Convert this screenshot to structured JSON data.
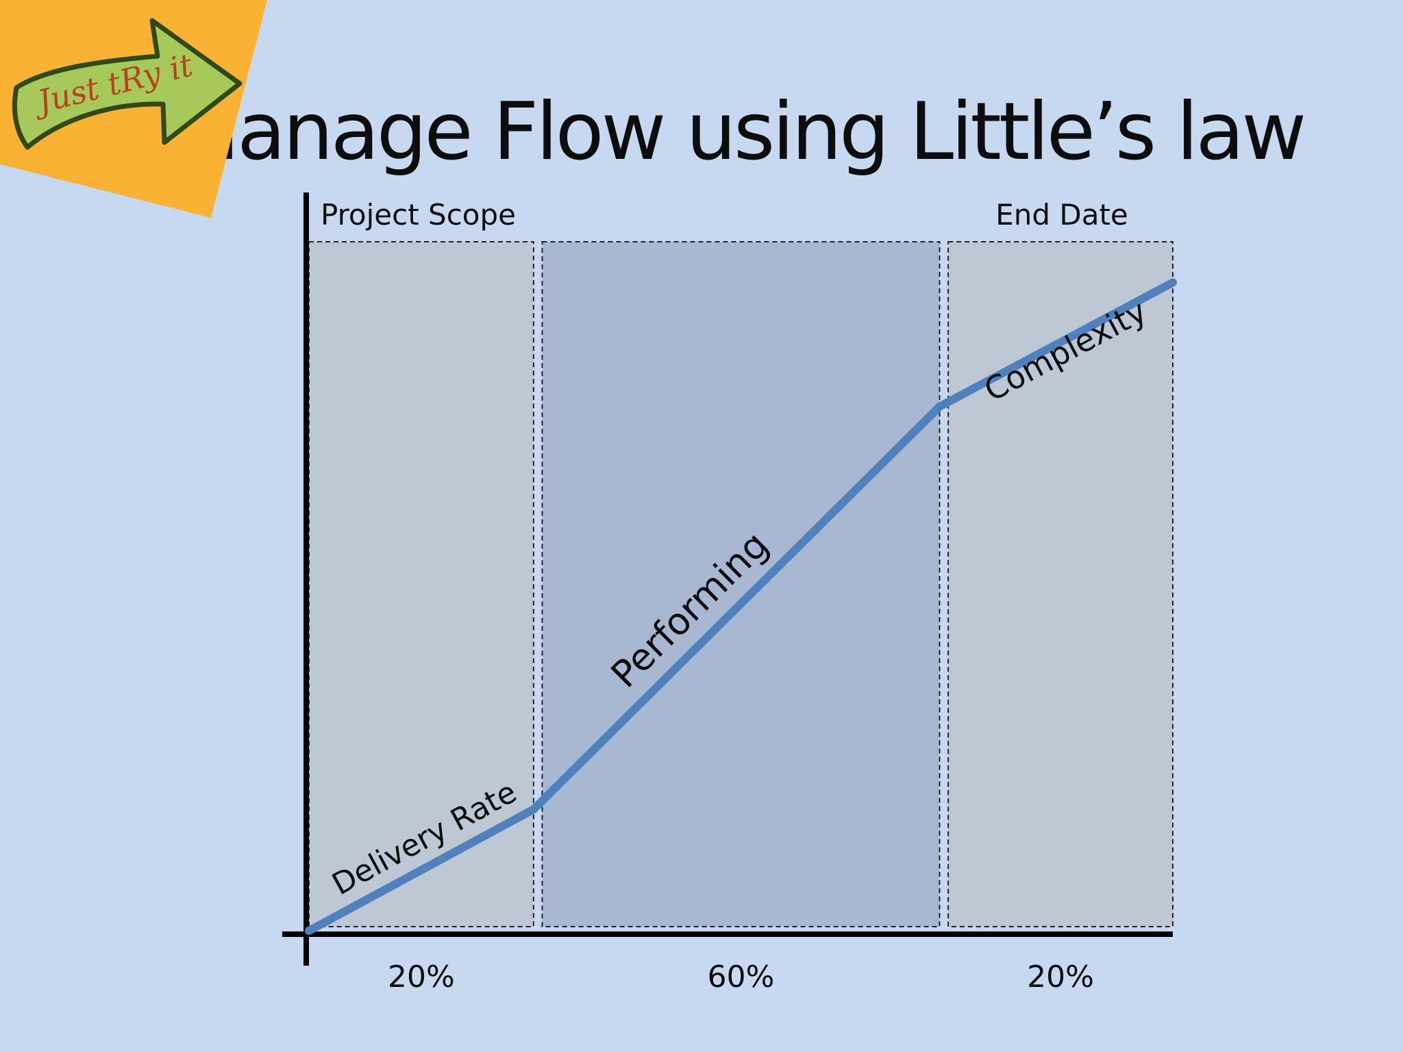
{
  "slide": {
    "title": "Manage Flow using Little’s law",
    "sticky_note": {
      "text": "Just tRy it",
      "colors": {
        "note": "#f9b233",
        "arrow": "#a7c95a",
        "outline": "#2f4a17",
        "lettering": "#b5431e"
      }
    }
  },
  "chart_data": {
    "type": "line",
    "title": "",
    "ylabel": "Project Scope",
    "xlabel": "End Date",
    "ylim": [
      0,
      100
    ],
    "xlim": [
      0,
      100
    ],
    "grid": false,
    "legend": "none",
    "series": [
      {
        "values": [
          [
            0,
            0
          ],
          [
            26,
            17.6
          ],
          [
            73,
            76
          ],
          [
            100,
            94
          ]
        ],
        "color": "#4f81bd"
      }
    ],
    "phases": [
      {
        "start": 0,
        "end": 26,
        "share_label": "20%",
        "segment_label": "Delivery Rate",
        "fill": "#bdc8d4"
      },
      {
        "start": 27,
        "end": 73,
        "share_label": "60%",
        "segment_label": "Performing",
        "fill": "#a9b8d2"
      },
      {
        "start": 74,
        "end": 100,
        "share_label": "20%",
        "segment_label": "Complexity",
        "fill": "#bdc8d4"
      }
    ]
  }
}
